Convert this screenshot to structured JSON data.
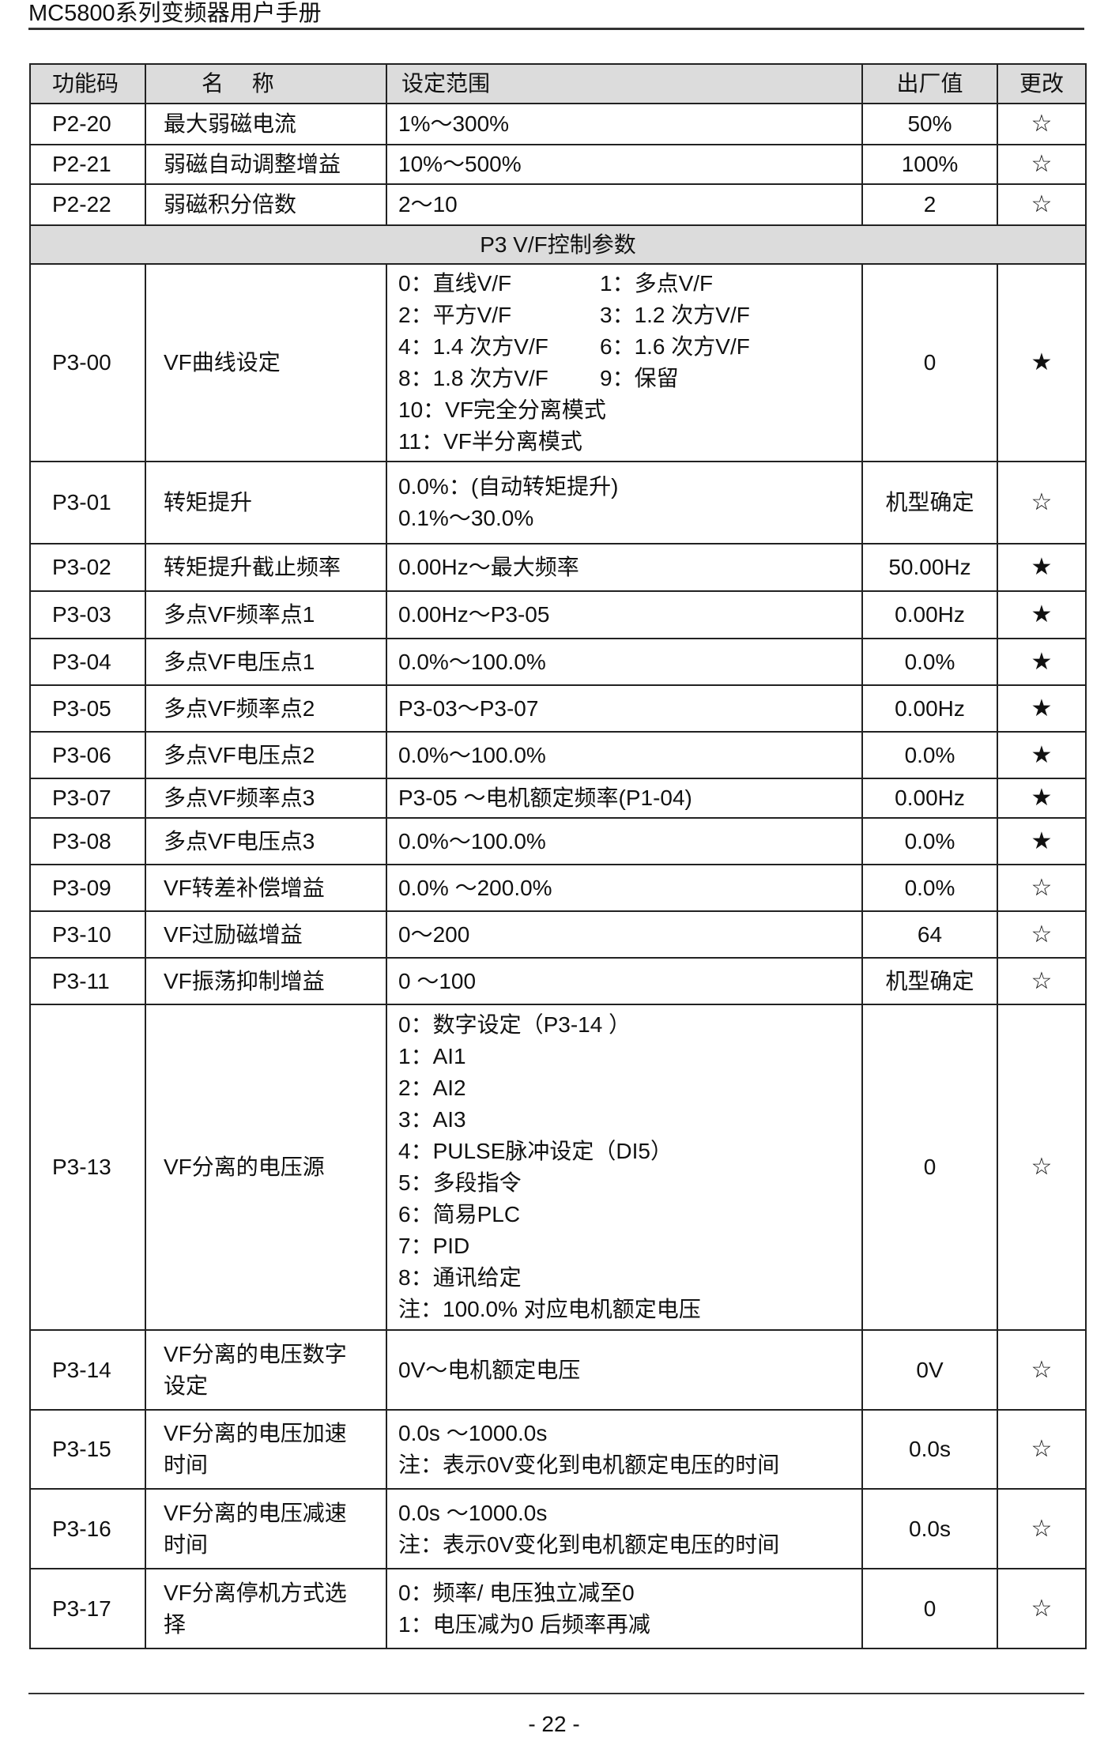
{
  "header": {
    "title": "MC5800系列变频器用户手册"
  },
  "table": {
    "columns": [
      "功能码",
      "名　 称",
      "设定范围",
      "出厂值",
      "更改"
    ],
    "rows": [
      {
        "code": "P2-20",
        "name": [
          "最大弱磁电流"
        ],
        "range": [
          "1%～300%"
        ],
        "default": "50%",
        "change": "☆"
      },
      {
        "code": "P2-21",
        "name": [
          "弱磁自动调整增益"
        ],
        "range": [
          "10%～500%"
        ],
        "default": "100%",
        "change": "☆"
      },
      {
        "code": "P2-22",
        "name": [
          "弱磁积分倍数"
        ],
        "range": [
          "2～10"
        ],
        "default": "2",
        "change": "☆"
      },
      {
        "section": "P3 V/F控制参数"
      },
      {
        "code": "P3-00",
        "name": [
          "VF曲线设定"
        ],
        "range": [
          [
            "0：直线V/F",
            "1：多点V/F"
          ],
          [
            "2：平方V/F",
            "3：1.2 次方V/F"
          ],
          [
            "4：1.4 次方V/F",
            "6：1.6 次方V/F"
          ],
          [
            "8：1.8 次方V/F",
            "9：保留"
          ],
          "10：VF完全分离模式",
          "11：VF半分离模式"
        ],
        "default": "0",
        "change": "★"
      },
      {
        "code": "P3-01",
        "name": [
          "转矩提升"
        ],
        "range": [
          "0.0%：(自动转矩提升)",
          "0.1%～30.0%"
        ],
        "default": "机型确定",
        "change": "☆"
      },
      {
        "code": "P3-02",
        "name": [
          "转矩提升截止频率"
        ],
        "range": [
          "0.00Hz～最大频率"
        ],
        "default": "50.00Hz",
        "change": "★"
      },
      {
        "code": "P3-03",
        "name": [
          "多点VF频率点1"
        ],
        "range": [
          "0.00Hz～P3-05"
        ],
        "default": "0.00Hz",
        "change": "★"
      },
      {
        "code": "P3-04",
        "name": [
          "多点VF电压点1"
        ],
        "range": [
          "0.0%～100.0%"
        ],
        "default": "0.0%",
        "change": "★"
      },
      {
        "code": "P3-05",
        "name": [
          "多点VF频率点2"
        ],
        "range": [
          "P3-03～P3-07"
        ],
        "default": "0.00Hz",
        "change": "★"
      },
      {
        "code": "P3-06",
        "name": [
          "多点VF电压点2"
        ],
        "range": [
          "0.0%～100.0%"
        ],
        "default": "0.0%",
        "change": "★"
      },
      {
        "code": "P3-07",
        "name": [
          "多点VF频率点3"
        ],
        "range": [
          "P3-05 ～电机额定频率(P1-04)"
        ],
        "default": "0.00Hz",
        "change": "★"
      },
      {
        "code": "P3-08",
        "name": [
          "多点VF电压点3"
        ],
        "range": [
          "0.0%～100.0%"
        ],
        "default": "0.0%",
        "change": "★"
      },
      {
        "code": "P3-09",
        "name": [
          "VF转差补偿增益"
        ],
        "range": [
          "0.0% ～200.0%"
        ],
        "default": "0.0%",
        "change": "☆"
      },
      {
        "code": "P3-10",
        "name": [
          "VF过励磁增益"
        ],
        "range": [
          "0～200"
        ],
        "default": "64",
        "change": "☆"
      },
      {
        "code": "P3-11",
        "name": [
          "VF振荡抑制增益"
        ],
        "range": [
          "0 ～100"
        ],
        "default": "机型确定",
        "change": "☆"
      },
      {
        "code": "P3-13",
        "name": [
          "VF分离的电压源"
        ],
        "range": [
          "0：数字设定（P3-14 ）",
          "1：AI1",
          "2：AI2",
          "3：AI3",
          "4：PULSE脉冲设定（DI5）",
          "5：多段指令",
          "6：简易PLC",
          "7：PID",
          "8：通讯给定",
          "注：100.0% 对应电机额定电压"
        ],
        "default": "0",
        "change": "☆"
      },
      {
        "code": "P3-14",
        "name": [
          "VF分离的电压数字",
          "设定"
        ],
        "range": [
          "0V～电机额定电压"
        ],
        "default": "0V",
        "change": "☆"
      },
      {
        "code": "P3-15",
        "name": [
          "VF分离的电压加速",
          "时间"
        ],
        "range": [
          "0.0s ～1000.0s",
          "注：表示0V变化到电机额定电压的时间"
        ],
        "default": "0.0s",
        "change": "☆"
      },
      {
        "code": "P3-16",
        "name": [
          "VF分离的电压减速",
          "时间"
        ],
        "range": [
          "0.0s ～1000.0s",
          "注：表示0V变化到电机额定电压的时间"
        ],
        "default": "0.0s",
        "change": "☆"
      },
      {
        "code": "P3-17",
        "name": [
          "VF分离停机方式选",
          "择"
        ],
        "range": [
          "0：频率/ 电压独立减至0",
          "1：电压减为0 后频率再减"
        ],
        "default": "0",
        "change": "☆"
      }
    ]
  },
  "footer": {
    "page": "- 22 -"
  }
}
